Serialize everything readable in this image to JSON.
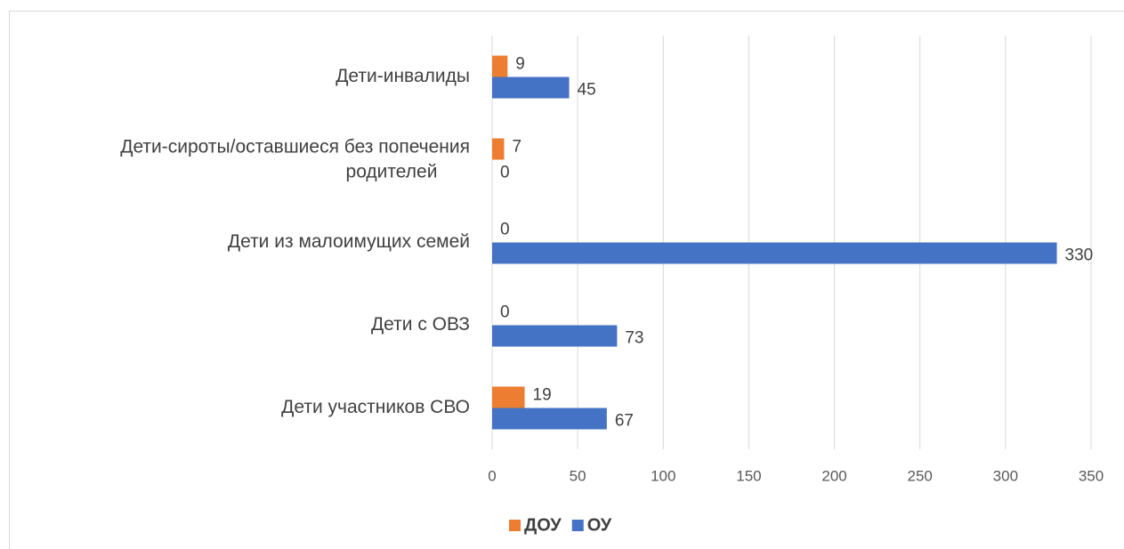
{
  "chart_data": {
    "type": "hbar",
    "categories": [
      "Дети-инвалиды",
      "Дети-сироты/оставшиеся без попечения родителей",
      "Дети из малоимущих семей",
      "Дети с ОВЗ",
      "Дети участников СВО"
    ],
    "series": [
      {
        "name": "ДОУ",
        "color": "#ed7d31",
        "values": [
          9,
          7,
          0,
          0,
          19
        ]
      },
      {
        "name": "ОУ",
        "color": "#4472c4",
        "values": [
          45,
          0,
          330,
          73,
          67
        ]
      }
    ],
    "xlim": [
      0,
      350
    ],
    "xticks": [
      0,
      50,
      100,
      150,
      200,
      250,
      300,
      350
    ],
    "grid": true,
    "legend": "bottom"
  }
}
